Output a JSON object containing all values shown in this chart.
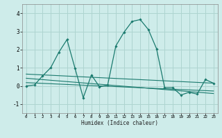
{
  "title": "",
  "xlabel": "Humidex (Indice chaleur)",
  "ylabel": "",
  "bg_color": "#ceecea",
  "grid_color": "#aed4d0",
  "line_color": "#1a7a6e",
  "marker_color": "#1a7a6e",
  "xlim": [
    -0.5,
    23.5
  ],
  "ylim": [
    -1.5,
    4.5
  ],
  "xticks": [
    0,
    1,
    2,
    3,
    4,
    5,
    6,
    7,
    8,
    9,
    10,
    11,
    12,
    13,
    14,
    15,
    16,
    17,
    18,
    19,
    20,
    21,
    22,
    23
  ],
  "yticks": [
    -1,
    0,
    1,
    2,
    3,
    4
  ],
  "main_x": [
    0,
    1,
    2,
    3,
    4,
    5,
    6,
    7,
    8,
    9,
    10,
    11,
    12,
    13,
    14,
    15,
    16,
    17,
    18,
    19,
    20,
    21,
    22,
    23
  ],
  "main_y": [
    0.0,
    0.05,
    0.55,
    1.0,
    1.85,
    2.55,
    0.95,
    -0.65,
    0.6,
    -0.05,
    0.05,
    2.2,
    2.95,
    3.55,
    3.65,
    3.1,
    2.05,
    -0.1,
    -0.1,
    -0.5,
    -0.35,
    -0.45,
    0.35,
    0.15
  ],
  "trend1_x": [
    0,
    23
  ],
  "trend1_y": [
    0.65,
    0.15
  ],
  "trend2_x": [
    0,
    23
  ],
  "trend2_y": [
    0.42,
    -0.42
  ],
  "trend3_x": [
    0,
    23
  ],
  "trend3_y": [
    0.18,
    -0.28
  ]
}
